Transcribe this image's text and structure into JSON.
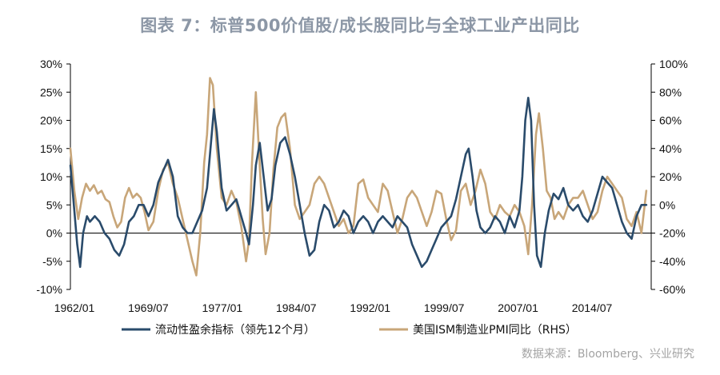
{
  "title": "图表 7：标普500价值股/成长股同比与全球工业产出同比",
  "source": "数据来源：Bloomberg、兴业研究",
  "colors": {
    "series1": "#2a4b6b",
    "series2": "#c8a679",
    "axis": "#000000",
    "source": "#a3a3a3"
  },
  "chart_data": {
    "type": "line",
    "x_ticks": [
      "1962/01",
      "1969/07",
      "1977/01",
      "1984/07",
      "1992/01",
      "1999/07",
      "2007/01",
      "2014/07"
    ],
    "x_range": [
      1962.0,
      2021.5
    ],
    "y_left": {
      "ticks": [
        "30%",
        "25%",
        "20%",
        "15%",
        "10%",
        "5%",
        "0%",
        "-5%",
        "-10%"
      ],
      "range": [
        -10,
        30
      ]
    },
    "y_right": {
      "ticks": [
        "100%",
        "80%",
        "60%",
        "40%",
        "20%",
        "0%",
        "-20%",
        "-40%",
        "-60%"
      ],
      "range": [
        -60,
        100
      ]
    },
    "legend_position": "bottom",
    "grid": false,
    "series": [
      {
        "name": "流动性盈余指标（领先12个月）",
        "axis": "left",
        "points": [
          [
            1962.0,
            12
          ],
          [
            1962.3,
            6
          ],
          [
            1962.7,
            -2
          ],
          [
            1963.0,
            -6
          ],
          [
            1963.3,
            0
          ],
          [
            1963.7,
            3
          ],
          [
            1964.0,
            2
          ],
          [
            1964.5,
            3
          ],
          [
            1965.0,
            2
          ],
          [
            1965.5,
            0
          ],
          [
            1966.0,
            -1
          ],
          [
            1966.5,
            -3
          ],
          [
            1967.0,
            -4
          ],
          [
            1967.5,
            -2
          ],
          [
            1968.0,
            2
          ],
          [
            1968.5,
            3
          ],
          [
            1969.0,
            5
          ],
          [
            1969.5,
            5
          ],
          [
            1970.0,
            3
          ],
          [
            1970.5,
            5
          ],
          [
            1971.0,
            9
          ],
          [
            1971.5,
            11
          ],
          [
            1972.0,
            13
          ],
          [
            1972.5,
            10
          ],
          [
            1973.0,
            3
          ],
          [
            1973.5,
            1
          ],
          [
            1974.0,
            0
          ],
          [
            1974.5,
            0
          ],
          [
            1975.0,
            2
          ],
          [
            1975.5,
            4
          ],
          [
            1976.0,
            8
          ],
          [
            1976.3,
            14
          ],
          [
            1976.7,
            22
          ],
          [
            1977.0,
            18
          ],
          [
            1977.5,
            8
          ],
          [
            1978.0,
            4
          ],
          [
            1978.5,
            5
          ],
          [
            1979.0,
            6
          ],
          [
            1979.5,
            3
          ],
          [
            1980.0,
            0
          ],
          [
            1980.3,
            -2
          ],
          [
            1980.7,
            5
          ],
          [
            1981.0,
            12
          ],
          [
            1981.4,
            16
          ],
          [
            1981.8,
            10
          ],
          [
            1982.2,
            4
          ],
          [
            1982.6,
            6
          ],
          [
            1983.0,
            12
          ],
          [
            1983.5,
            16
          ],
          [
            1984.0,
            17
          ],
          [
            1984.5,
            14
          ],
          [
            1985.0,
            10
          ],
          [
            1985.5,
            5
          ],
          [
            1986.0,
            0
          ],
          [
            1986.5,
            -4
          ],
          [
            1987.0,
            -3
          ],
          [
            1987.5,
            2
          ],
          [
            1988.0,
            5
          ],
          [
            1988.5,
            4
          ],
          [
            1989.0,
            1
          ],
          [
            1989.5,
            2
          ],
          [
            1990.0,
            4
          ],
          [
            1990.5,
            3
          ],
          [
            1991.0,
            0
          ],
          [
            1991.5,
            2
          ],
          [
            1992.0,
            3
          ],
          [
            1992.5,
            2
          ],
          [
            1993.0,
            0
          ],
          [
            1993.5,
            2
          ],
          [
            1994.0,
            3
          ],
          [
            1994.5,
            2
          ],
          [
            1995.0,
            1
          ],
          [
            1995.5,
            3
          ],
          [
            1996.0,
            2
          ],
          [
            1996.5,
            1
          ],
          [
            1997.0,
            -2
          ],
          [
            1997.5,
            -4
          ],
          [
            1998.0,
            -6
          ],
          [
            1998.5,
            -5
          ],
          [
            1999.0,
            -3
          ],
          [
            1999.5,
            -1
          ],
          [
            2000.0,
            1
          ],
          [
            2000.5,
            2
          ],
          [
            2001.0,
            3
          ],
          [
            2001.5,
            6
          ],
          [
            2002.0,
            10
          ],
          [
            2002.5,
            14
          ],
          [
            2002.8,
            15
          ],
          [
            2003.2,
            10
          ],
          [
            2003.6,
            4
          ],
          [
            2004.0,
            1
          ],
          [
            2004.5,
            0
          ],
          [
            2005.0,
            1
          ],
          [
            2005.5,
            3
          ],
          [
            2006.0,
            2
          ],
          [
            2006.5,
            0
          ],
          [
            2007.0,
            3
          ],
          [
            2007.5,
            1
          ],
          [
            2008.0,
            4
          ],
          [
            2008.3,
            10
          ],
          [
            2008.6,
            20
          ],
          [
            2008.9,
            24
          ],
          [
            2009.2,
            20
          ],
          [
            2009.5,
            5
          ],
          [
            2009.8,
            -4
          ],
          [
            2010.2,
            -6
          ],
          [
            2010.6,
            0
          ],
          [
            2011.0,
            4
          ],
          [
            2011.5,
            7
          ],
          [
            2012.0,
            6
          ],
          [
            2012.5,
            8
          ],
          [
            2013.0,
            5
          ],
          [
            2013.5,
            4
          ],
          [
            2014.0,
            5
          ],
          [
            2014.5,
            3
          ],
          [
            2015.0,
            2
          ],
          [
            2015.5,
            4
          ],
          [
            2016.0,
            7
          ],
          [
            2016.5,
            10
          ],
          [
            2017.0,
            9
          ],
          [
            2017.5,
            8
          ],
          [
            2018.0,
            5
          ],
          [
            2018.5,
            2
          ],
          [
            2019.0,
            0
          ],
          [
            2019.5,
            -1
          ],
          [
            2020.0,
            3
          ],
          [
            2020.5,
            5
          ],
          [
            2021.0,
            5
          ]
        ]
      },
      {
        "name": "美国ISM制造业PMI同比（RHS）",
        "axis": "right",
        "points": [
          [
            1962.0,
            40
          ],
          [
            1962.4,
            10
          ],
          [
            1962.8,
            -10
          ],
          [
            1963.2,
            5
          ],
          [
            1963.6,
            15
          ],
          [
            1964.0,
            10
          ],
          [
            1964.4,
            14
          ],
          [
            1964.8,
            8
          ],
          [
            1965.2,
            10
          ],
          [
            1965.6,
            4
          ],
          [
            1966.0,
            2
          ],
          [
            1966.4,
            -8
          ],
          [
            1966.8,
            -16
          ],
          [
            1967.2,
            -12
          ],
          [
            1967.6,
            5
          ],
          [
            1968.0,
            12
          ],
          [
            1968.4,
            5
          ],
          [
            1968.8,
            8
          ],
          [
            1969.2,
            5
          ],
          [
            1969.6,
            -5
          ],
          [
            1970.0,
            -18
          ],
          [
            1970.5,
            -12
          ],
          [
            1971.0,
            10
          ],
          [
            1971.5,
            25
          ],
          [
            1972.0,
            30
          ],
          [
            1972.5,
            15
          ],
          [
            1973.0,
            5
          ],
          [
            1973.5,
            -10
          ],
          [
            1974.0,
            -25
          ],
          [
            1974.5,
            -40
          ],
          [
            1974.9,
            -50
          ],
          [
            1975.3,
            -20
          ],
          [
            1975.7,
            30
          ],
          [
            1976.0,
            50
          ],
          [
            1976.3,
            90
          ],
          [
            1976.6,
            85
          ],
          [
            1977.0,
            40
          ],
          [
            1977.5,
            5
          ],
          [
            1978.0,
            0
          ],
          [
            1978.5,
            10
          ],
          [
            1979.0,
            2
          ],
          [
            1979.5,
            -15
          ],
          [
            1980.0,
            -40
          ],
          [
            1980.3,
            -25
          ],
          [
            1980.6,
            30
          ],
          [
            1981.0,
            80
          ],
          [
            1981.3,
            40
          ],
          [
            1981.7,
            -10
          ],
          [
            1982.0,
            -35
          ],
          [
            1982.4,
            -20
          ],
          [
            1982.8,
            25
          ],
          [
            1983.2,
            55
          ],
          [
            1983.6,
            62
          ],
          [
            1984.0,
            65
          ],
          [
            1984.5,
            40
          ],
          [
            1985.0,
            0
          ],
          [
            1985.5,
            -10
          ],
          [
            1986.0,
            -5
          ],
          [
            1986.5,
            0
          ],
          [
            1987.0,
            15
          ],
          [
            1987.5,
            20
          ],
          [
            1988.0,
            15
          ],
          [
            1988.5,
            5
          ],
          [
            1989.0,
            -5
          ],
          [
            1989.5,
            -15
          ],
          [
            1990.0,
            -10
          ],
          [
            1990.5,
            -20
          ],
          [
            1991.0,
            -15
          ],
          [
            1991.5,
            15
          ],
          [
            1992.0,
            18
          ],
          [
            1992.5,
            5
          ],
          [
            1993.0,
            0
          ],
          [
            1993.5,
            -5
          ],
          [
            1994.0,
            15
          ],
          [
            1994.5,
            10
          ],
          [
            1995.0,
            -5
          ],
          [
            1995.5,
            -20
          ],
          [
            1996.0,
            -10
          ],
          [
            1996.5,
            5
          ],
          [
            1997.0,
            10
          ],
          [
            1997.5,
            5
          ],
          [
            1998.0,
            -5
          ],
          [
            1998.5,
            -15
          ],
          [
            1999.0,
            -5
          ],
          [
            1999.5,
            10
          ],
          [
            2000.0,
            8
          ],
          [
            2000.5,
            -10
          ],
          [
            2001.0,
            -25
          ],
          [
            2001.5,
            -18
          ],
          [
            2002.0,
            10
          ],
          [
            2002.5,
            15
          ],
          [
            2003.0,
            0
          ],
          [
            2003.5,
            10
          ],
          [
            2004.0,
            25
          ],
          [
            2004.5,
            15
          ],
          [
            2005.0,
            -5
          ],
          [
            2005.5,
            -10
          ],
          [
            2006.0,
            0
          ],
          [
            2006.5,
            -5
          ],
          [
            2007.0,
            -8
          ],
          [
            2007.5,
            0
          ],
          [
            2008.0,
            -5
          ],
          [
            2008.5,
            -15
          ],
          [
            2008.9,
            -35
          ],
          [
            2009.3,
            0
          ],
          [
            2009.7,
            50
          ],
          [
            2010.0,
            65
          ],
          [
            2010.4,
            40
          ],
          [
            2010.8,
            10
          ],
          [
            2011.2,
            5
          ],
          [
            2011.6,
            -10
          ],
          [
            2012.0,
            -5
          ],
          [
            2012.5,
            -10
          ],
          [
            2013.0,
            0
          ],
          [
            2013.5,
            5
          ],
          [
            2014.0,
            5
          ],
          [
            2014.5,
            10
          ],
          [
            2015.0,
            0
          ],
          [
            2015.5,
            -10
          ],
          [
            2016.0,
            -5
          ],
          [
            2016.5,
            10
          ],
          [
            2017.0,
            20
          ],
          [
            2017.5,
            15
          ],
          [
            2018.0,
            10
          ],
          [
            2018.5,
            5
          ],
          [
            2019.0,
            -10
          ],
          [
            2019.5,
            -15
          ],
          [
            2020.0,
            -5
          ],
          [
            2020.5,
            -20
          ],
          [
            2021.0,
            10
          ]
        ]
      }
    ]
  }
}
